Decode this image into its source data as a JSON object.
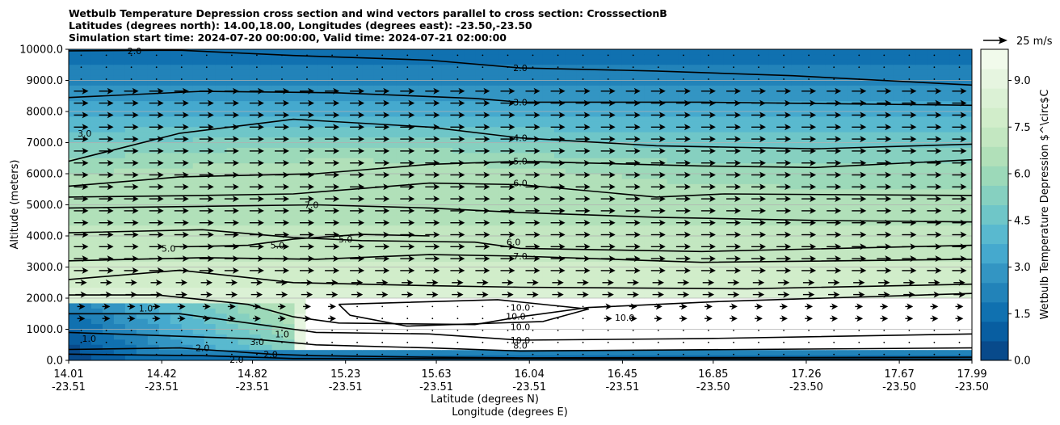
{
  "chart_data": {
    "type": "contour",
    "title_lines": [
      "Wetbulb Temperature Depression cross section and wind vectors parallel to cross section: CrosssectionB",
      "Latitudes (degrees north): 14.00,18.00, Longitudes (degrees east): -23.50,-23.50",
      "Simulation start time: 2024-07-20 00:00:00, Valid time: 2024-07-21 02:00:00"
    ],
    "xlabel_lines": [
      "Latitude (degrees N)",
      "Longitude (degrees E)"
    ],
    "ylabel": "Altitude (meters)",
    "ylim": [
      0,
      10000
    ],
    "yticks": [
      "0.0",
      "1000.0",
      "2000.0",
      "3000.0",
      "4000.0",
      "5000.0",
      "6000.0",
      "7000.0",
      "8000.0",
      "9000.0",
      "10000.0"
    ],
    "xticks": [
      {
        "lat": "14.01",
        "lon": "-23.51"
      },
      {
        "lat": "14.42",
        "lon": "-23.51"
      },
      {
        "lat": "14.82",
        "lon": "-23.51"
      },
      {
        "lat": "15.23",
        "lon": "-23.51"
      },
      {
        "lat": "15.63",
        "lon": "-23.51"
      },
      {
        "lat": "16.04",
        "lon": "-23.51"
      },
      {
        "lat": "16.45",
        "lon": "-23.51"
      },
      {
        "lat": "16.85",
        "lon": "-23.50"
      },
      {
        "lat": "17.26",
        "lon": "-23.50"
      },
      {
        "lat": "17.67",
        "lon": "-23.50"
      },
      {
        "lat": "17.99",
        "lon": "-23.50"
      }
    ],
    "colorbar": {
      "label": "Wetbulb Temperature Depression $^\\circ$C",
      "ticks": [
        "0.0",
        "1.5",
        "3.0",
        "4.5",
        "6.0",
        "7.5",
        "9.0"
      ],
      "range": [
        0,
        10
      ],
      "colormap": "GnBu_r"
    },
    "quiver_key": "25 m/s",
    "contour_labels": [
      {
        "text": "2.0",
        "x": 16.0,
        "y": 9400
      },
      {
        "text": "3.0",
        "x": 16.0,
        "y": 8300
      },
      {
        "text": "4.0",
        "x": 16.0,
        "y": 7150
      },
      {
        "text": "5.0",
        "x": 16.0,
        "y": 6400
      },
      {
        "text": "6.0",
        "x": 16.0,
        "y": 5700
      },
      {
        "text": "7.0",
        "x": 15.08,
        "y": 5000
      },
      {
        "text": "5.0",
        "x": 15.23,
        "y": 3900
      },
      {
        "text": "5.0",
        "x": 14.93,
        "y": 3700
      },
      {
        "text": "5.0",
        "x": 14.45,
        "y": 3600
      },
      {
        "text": "6.0",
        "x": 15.97,
        "y": 3800
      },
      {
        "text": "7.0",
        "x": 16.0,
        "y": 3350
      },
      {
        "text": "3.0",
        "x": 14.08,
        "y": 7300
      },
      {
        "text": "10.0",
        "x": 16.0,
        "y": 1700
      },
      {
        "text": "10.0",
        "x": 15.98,
        "y": 1420
      },
      {
        "text": "10.0",
        "x": 16.0,
        "y": 1080
      },
      {
        "text": "10.0",
        "x": 16.46,
        "y": 1380
      },
      {
        "text": "10.0",
        "x": 16.0,
        "y": 650
      },
      {
        "text": "8.0",
        "x": 16.0,
        "y": 480
      },
      {
        "text": "1.0",
        "x": 14.1,
        "y": 700
      },
      {
        "text": "2.0",
        "x": 14.6,
        "y": 400
      },
      {
        "text": "3.0",
        "x": 14.84,
        "y": 600
      },
      {
        "text": "2.0",
        "x": 14.9,
        "y": 200
      },
      {
        "text": "2.0",
        "x": 14.75,
        "y": 20
      },
      {
        "text": "1.0",
        "x": 14.35,
        "y": 1680
      },
      {
        "text": "2.0",
        "x": 14.3,
        "y": 9950
      },
      {
        "text": "1.0",
        "x": 14.95,
        "y": 850
      }
    ]
  }
}
